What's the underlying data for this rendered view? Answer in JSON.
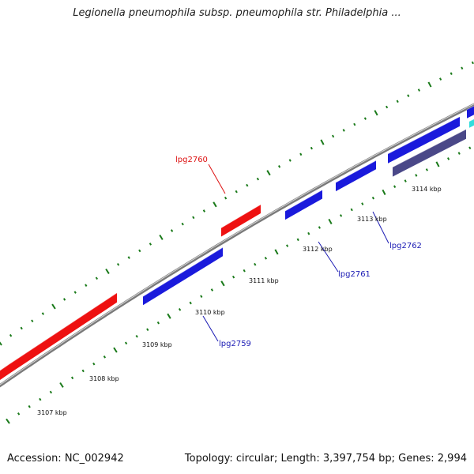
{
  "title": "Legionella pneumophila subsp. pneumophila str. Philadelphia ...",
  "footer": {
    "accession": "Accession: NC_002942",
    "summary": "Topology: circular; Length: 3,397,754 bp; Genes: 2,994"
  },
  "colors": {
    "backbone": "#7a7a7a",
    "tick": "#1a7a1a",
    "forward_gene": "#ee1111",
    "reverse_gene": "#1a1adc",
    "dark_gene": "#4a4888",
    "cyan_gene": "#33dddd",
    "forward_label": "#dd1111",
    "reverse_label": "#1a1ab4"
  },
  "position_labels": [
    {
      "id": "3107",
      "text": "3107 kbp"
    },
    {
      "id": "3108",
      "text": "3108 kbp"
    },
    {
      "id": "3109",
      "text": "3109 kbp"
    },
    {
      "id": "3110",
      "text": "3110 kbp"
    },
    {
      "id": "3111",
      "text": "3111 kbp"
    },
    {
      "id": "3112",
      "text": "3112 kbp"
    },
    {
      "id": "3113",
      "text": "3113 kbp"
    },
    {
      "id": "3114",
      "text": "3114 kbp"
    }
  ],
  "gene_labels": [
    {
      "id": "lpg2760",
      "text": "lpg2760",
      "strand": "forward"
    },
    {
      "id": "lpg2759",
      "text": "lpg2759",
      "strand": "reverse"
    },
    {
      "id": "lpg2761",
      "text": "lpg2761",
      "strand": "reverse"
    },
    {
      "id": "lpg2762",
      "text": "lpg2762",
      "strand": "reverse"
    }
  ]
}
